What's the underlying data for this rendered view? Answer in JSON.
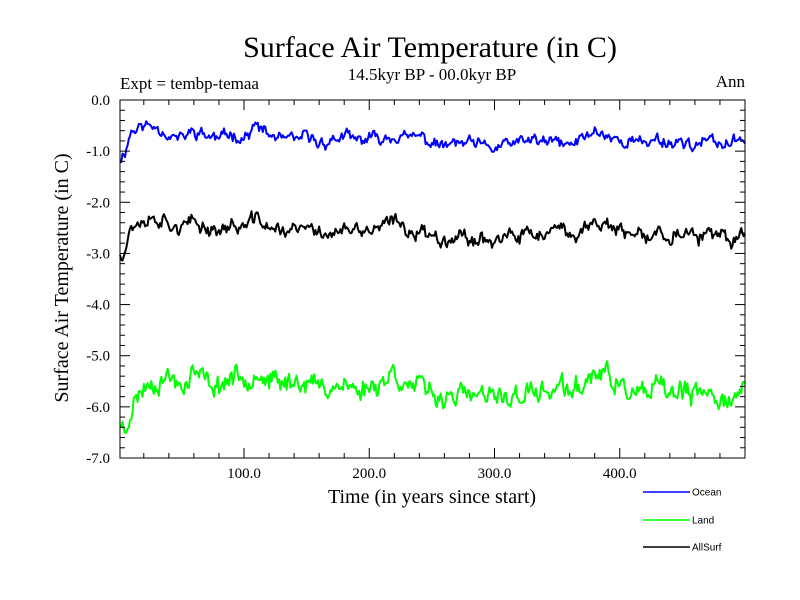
{
  "chart_data": {
    "type": "line",
    "title": "Surface Air Temperature (in C)",
    "subtitle": "14.5kyr BP - 00.0kyr BP",
    "left_annotation": "Expt = tembp-temaa",
    "right_annotation": "Ann",
    "xlabel": "Time (in years since start)",
    "ylabel": "Surface Air Temperature (in C)",
    "xlim": [
      1,
      500
    ],
    "ylim": [
      -7.0,
      0.0
    ],
    "x_ticks": [
      100,
      200,
      300,
      400
    ],
    "x_tick_labels": [
      "100.0",
      "200.0",
      "300.0",
      "400.0"
    ],
    "y_ticks": [
      0,
      -1,
      -2,
      -3,
      -4,
      -5,
      -6,
      -7
    ],
    "y_tick_labels": [
      "0.0",
      "-1.0",
      "-2.0",
      "-3.0",
      "-4.0",
      "-5.0",
      "-6.0",
      "-7.0"
    ],
    "legend_position": "bottom-right",
    "series": [
      {
        "name": "Ocean",
        "color": "#0000ff",
        "anchors": [
          [
            1,
            -1.15
          ],
          [
            5,
            -1.0
          ],
          [
            10,
            -0.6
          ],
          [
            20,
            -0.5
          ],
          [
            30,
            -0.5
          ],
          [
            40,
            -0.7
          ],
          [
            50,
            -0.75
          ],
          [
            60,
            -0.6
          ],
          [
            70,
            -0.7
          ],
          [
            80,
            -0.75
          ],
          [
            90,
            -0.65
          ],
          [
            100,
            -0.75
          ],
          [
            110,
            -0.5
          ],
          [
            120,
            -0.7
          ],
          [
            130,
            -0.75
          ],
          [
            140,
            -0.8
          ],
          [
            150,
            -0.7
          ],
          [
            160,
            -0.85
          ],
          [
            170,
            -0.8
          ],
          [
            180,
            -0.7
          ],
          [
            190,
            -0.8
          ],
          [
            200,
            -0.75
          ],
          [
            210,
            -0.75
          ],
          [
            220,
            -0.7
          ],
          [
            230,
            -0.75
          ],
          [
            240,
            -0.7
          ],
          [
            250,
            -0.85
          ],
          [
            260,
            -0.9
          ],
          [
            270,
            -0.85
          ],
          [
            280,
            -0.85
          ],
          [
            290,
            -0.9
          ],
          [
            300,
            -0.95
          ],
          [
            310,
            -0.85
          ],
          [
            320,
            -0.85
          ],
          [
            330,
            -0.75
          ],
          [
            340,
            -0.85
          ],
          [
            350,
            -0.8
          ],
          [
            360,
            -0.9
          ],
          [
            370,
            -0.75
          ],
          [
            380,
            -0.6
          ],
          [
            390,
            -0.7
          ],
          [
            400,
            -0.8
          ],
          [
            410,
            -0.8
          ],
          [
            420,
            -0.85
          ],
          [
            430,
            -0.75
          ],
          [
            440,
            -0.85
          ],
          [
            450,
            -0.8
          ],
          [
            460,
            -0.9
          ],
          [
            470,
            -0.8
          ],
          [
            480,
            -0.85
          ],
          [
            490,
            -0.85
          ],
          [
            500,
            -0.75
          ]
        ],
        "noise_amplitude": 0.18,
        "seed": 11
      },
      {
        "name": "Land",
        "color": "#00ff00",
        "anchors": [
          [
            1,
            -6.3
          ],
          [
            5,
            -6.5
          ],
          [
            10,
            -6.0
          ],
          [
            20,
            -5.6
          ],
          [
            30,
            -5.5
          ],
          [
            40,
            -5.4
          ],
          [
            50,
            -5.6
          ],
          [
            60,
            -5.3
          ],
          [
            70,
            -5.5
          ],
          [
            80,
            -5.6
          ],
          [
            90,
            -5.4
          ],
          [
            100,
            -5.45
          ],
          [
            110,
            -5.3
          ],
          [
            120,
            -5.5
          ],
          [
            130,
            -5.55
          ],
          [
            140,
            -5.5
          ],
          [
            150,
            -5.5
          ],
          [
            160,
            -5.6
          ],
          [
            170,
            -5.6
          ],
          [
            180,
            -5.55
          ],
          [
            190,
            -5.7
          ],
          [
            200,
            -5.6
          ],
          [
            210,
            -5.5
          ],
          [
            220,
            -5.3
          ],
          [
            230,
            -5.6
          ],
          [
            240,
            -5.6
          ],
          [
            250,
            -5.75
          ],
          [
            260,
            -5.8
          ],
          [
            270,
            -5.75
          ],
          [
            280,
            -5.8
          ],
          [
            290,
            -5.8
          ],
          [
            300,
            -5.85
          ],
          [
            310,
            -5.8
          ],
          [
            320,
            -5.8
          ],
          [
            330,
            -5.7
          ],
          [
            340,
            -5.75
          ],
          [
            350,
            -5.6
          ],
          [
            360,
            -5.7
          ],
          [
            370,
            -5.6
          ],
          [
            380,
            -5.3
          ],
          [
            390,
            -5.4
          ],
          [
            400,
            -5.6
          ],
          [
            410,
            -5.75
          ],
          [
            420,
            -5.8
          ],
          [
            430,
            -5.6
          ],
          [
            440,
            -5.75
          ],
          [
            450,
            -5.7
          ],
          [
            460,
            -5.8
          ],
          [
            470,
            -5.75
          ],
          [
            480,
            -5.8
          ],
          [
            490,
            -5.85
          ],
          [
            500,
            -5.7
          ]
        ],
        "noise_amplitude": 0.32,
        "seed": 23
      },
      {
        "name": "AllSurf",
        "color": "#000000",
        "anchors": [
          [
            1,
            -3.0
          ],
          [
            5,
            -2.9
          ],
          [
            10,
            -2.45
          ],
          [
            20,
            -2.35
          ],
          [
            30,
            -2.3
          ],
          [
            40,
            -2.4
          ],
          [
            50,
            -2.5
          ],
          [
            60,
            -2.4
          ],
          [
            70,
            -2.5
          ],
          [
            80,
            -2.55
          ],
          [
            90,
            -2.45
          ],
          [
            100,
            -2.5
          ],
          [
            110,
            -2.3
          ],
          [
            120,
            -2.5
          ],
          [
            130,
            -2.55
          ],
          [
            140,
            -2.55
          ],
          [
            150,
            -2.5
          ],
          [
            160,
            -2.6
          ],
          [
            170,
            -2.6
          ],
          [
            180,
            -2.55
          ],
          [
            190,
            -2.6
          ],
          [
            200,
            -2.55
          ],
          [
            210,
            -2.5
          ],
          [
            220,
            -2.35
          ],
          [
            230,
            -2.55
          ],
          [
            240,
            -2.55
          ],
          [
            250,
            -2.65
          ],
          [
            260,
            -2.7
          ],
          [
            270,
            -2.65
          ],
          [
            280,
            -2.7
          ],
          [
            290,
            -2.7
          ],
          [
            300,
            -2.75
          ],
          [
            310,
            -2.7
          ],
          [
            320,
            -2.7
          ],
          [
            330,
            -2.6
          ],
          [
            340,
            -2.65
          ],
          [
            350,
            -2.55
          ],
          [
            360,
            -2.65
          ],
          [
            370,
            -2.55
          ],
          [
            380,
            -2.35
          ],
          [
            390,
            -2.45
          ],
          [
            400,
            -2.6
          ],
          [
            410,
            -2.65
          ],
          [
            420,
            -2.7
          ],
          [
            430,
            -2.6
          ],
          [
            440,
            -2.65
          ],
          [
            450,
            -2.6
          ],
          [
            460,
            -2.7
          ],
          [
            470,
            -2.65
          ],
          [
            480,
            -2.7
          ],
          [
            490,
            -2.75
          ],
          [
            500,
            -2.6
          ]
        ],
        "noise_amplitude": 0.22,
        "seed": 37
      }
    ]
  }
}
